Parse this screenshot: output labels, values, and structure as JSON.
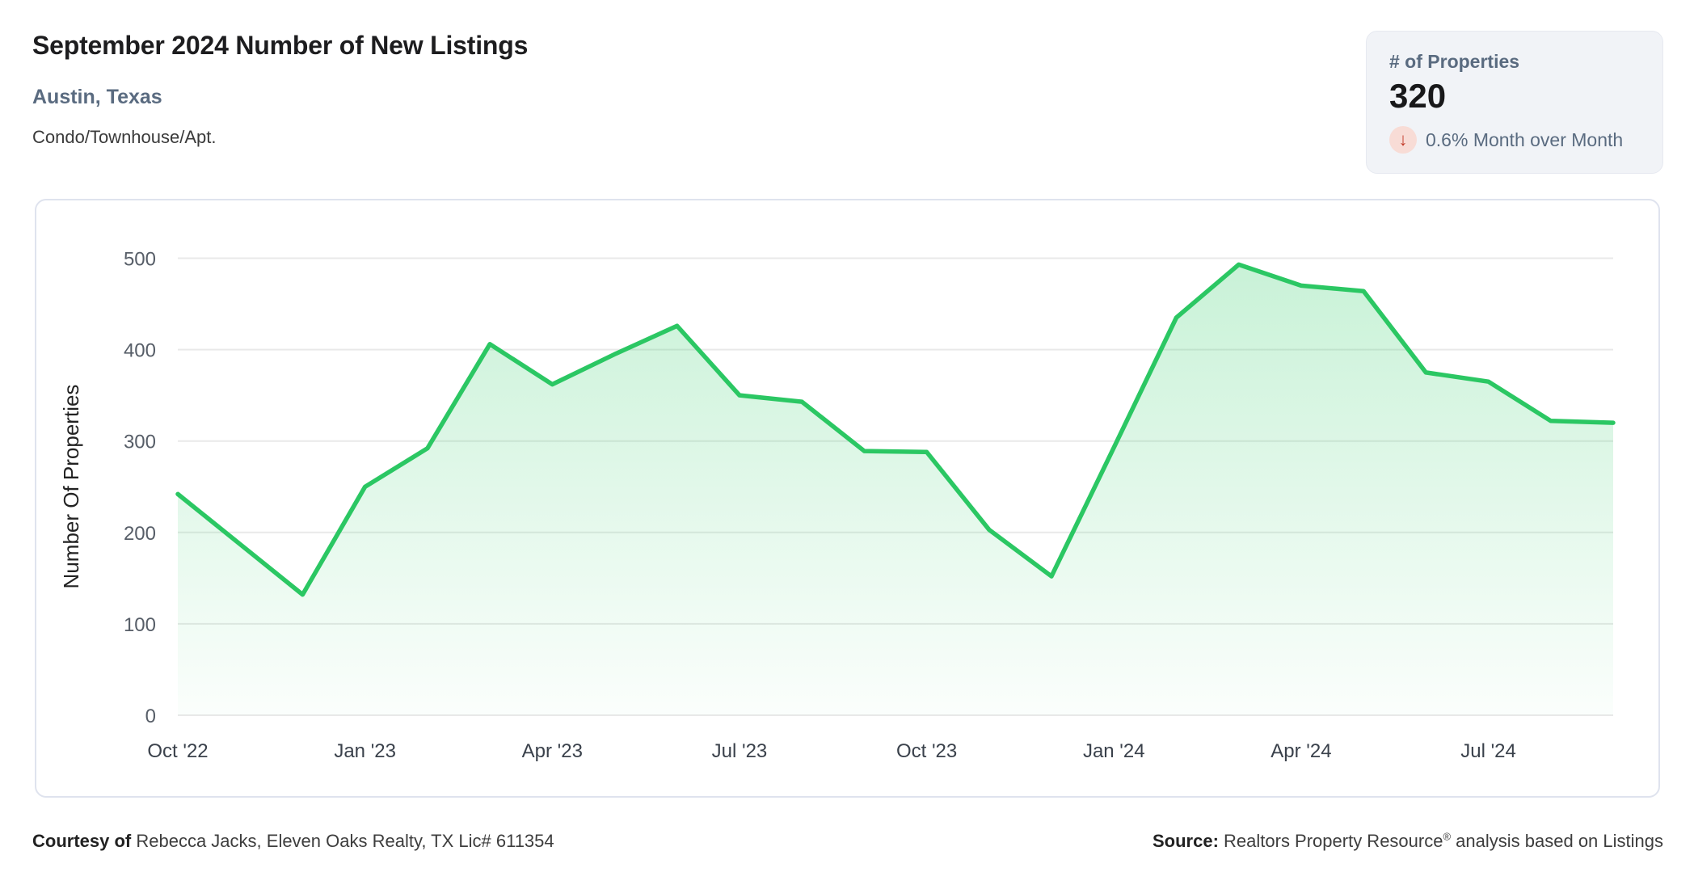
{
  "header": {
    "title": "September 2024 Number of New Listings",
    "location": "Austin, Texas",
    "property_type": "Condo/Townhouse/Apt."
  },
  "stat_card": {
    "label": "# of Properties",
    "value": "320",
    "change_text": "0.6% Month over Month",
    "change_direction": "down",
    "arrow_glyph": "↓",
    "arrow_color": "#c23a28",
    "arrow_bg": "#f8dcd6"
  },
  "footer": {
    "courtesy_bold": "Courtesy of",
    "courtesy_rest": " Rebecca Jacks, Eleven Oaks Realty, TX Lic# 611354",
    "source_bold": "Source:",
    "source_rest_1": " Realtors Property Resource",
    "source_sup": "®",
    "source_rest_2": " analysis based on Listings"
  },
  "chart_data": {
    "type": "area",
    "title": "September 2024 Number of New Listings",
    "xlabel": "",
    "ylabel": "Number Of Properties",
    "ylim": [
      0,
      560
    ],
    "yticks": [
      0,
      100,
      200,
      300,
      400,
      500
    ],
    "grid": true,
    "legend": "none",
    "x_tick_labels": [
      "Oct '22",
      "Jan '23",
      "Apr '23",
      "Jul '23",
      "Oct '23",
      "Jan '24",
      "Apr '24",
      "Jul '24"
    ],
    "x_tick_month_step": 3,
    "months": [
      "Oct '22",
      "Nov '22",
      "Dec '22",
      "Jan '23",
      "Feb '23",
      "Mar '23",
      "Apr '23",
      "May '23",
      "Jun '23",
      "Jul '23",
      "Aug '23",
      "Sep '23",
      "Oct '23",
      "Nov '23",
      "Dec '23",
      "Jan '24",
      "Feb '24",
      "Mar '24",
      "Apr '24",
      "May '24",
      "Jun '24",
      "Jul '24",
      "Aug '24",
      "Sep '24"
    ],
    "values": [
      242,
      187,
      132,
      250,
      292,
      406,
      362,
      395,
      426,
      350,
      343,
      289,
      288,
      203,
      152,
      293,
      435,
      493,
      470,
      464,
      375,
      365,
      322,
      320
    ],
    "line_color": "#2bc763",
    "fill_color": "#2ecc66",
    "fill_opacity_top": 0.26,
    "fill_opacity_bottom": 0.02,
    "grid_color": "#e9e9e9",
    "y_tick_color": "#575e68",
    "x_tick_color": "#3a414b",
    "axis_title_color": "#222222"
  }
}
